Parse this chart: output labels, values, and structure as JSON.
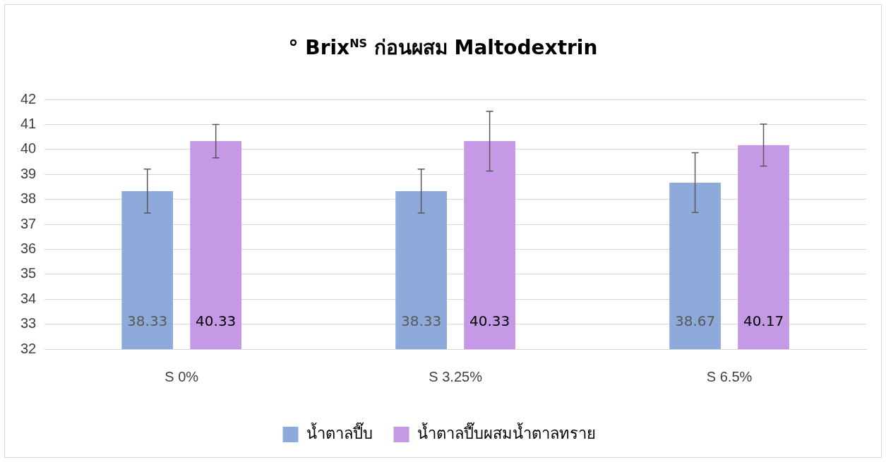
{
  "chart_data": {
    "type": "bar",
    "title": "° Brix$^{NS}$ ก่อนผสม Maltodextrin",
    "categories": [
      "S 0%",
      "S 3.25%",
      "S 6.5%"
    ],
    "series": [
      {
        "name": "น้ำตาลปี๊บ",
        "color": "#8eaadb",
        "values": [
          38.33,
          38.33,
          38.67
        ],
        "errors": [
          0.88,
          0.88,
          1.2
        ]
      },
      {
        "name": "น้ำตาลปี๊บผสมน้ำตาลทราย",
        "color": "#c599e5",
        "values": [
          40.33,
          40.33,
          40.17
        ],
        "errors": [
          0.67,
          1.2,
          0.84
        ]
      }
    ],
    "ylim": [
      32,
      42
    ],
    "yticks": [
      32,
      33,
      34,
      35,
      36,
      37,
      38,
      39,
      40,
      41,
      42
    ],
    "grid": "y",
    "legend": "bottom",
    "data_labels": true
  }
}
